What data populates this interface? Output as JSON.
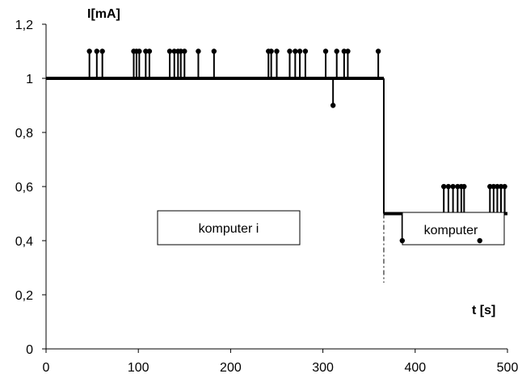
{
  "chart_data": {
    "type": "line",
    "ylabel": "I[mA]",
    "xlabel": "t [s]",
    "xlim": [
      0,
      500
    ],
    "ylim": [
      0,
      1.2
    ],
    "x_ticks": [
      0,
      100,
      200,
      300,
      400,
      500
    ],
    "y_ticks": [
      {
        "value": 0,
        "label": "0"
      },
      {
        "value": 0.2,
        "label": "0,2"
      },
      {
        "value": 0.4,
        "label": "0,4"
      },
      {
        "value": 0.6,
        "label": "0,6"
      },
      {
        "value": 0.8,
        "label": "0,8"
      },
      {
        "value": 1,
        "label": "1"
      },
      {
        "value": 1.2,
        "label": "1,2"
      }
    ],
    "grid": false,
    "legend": "none",
    "line_color": "#000000",
    "baseline_segments": [
      {
        "x_start": 0,
        "x_end": 366,
        "y": 1.0
      },
      {
        "x_start": 366,
        "x_end": 500,
        "y": 0.5
      }
    ],
    "spikes": [
      {
        "x": 47,
        "y": 1.1
      },
      {
        "x": 55,
        "y": 1.1
      },
      {
        "x": 61,
        "y": 1.1
      },
      {
        "x": 95,
        "y": 1.1
      },
      {
        "x": 98,
        "y": 1.1
      },
      {
        "x": 101,
        "y": 1.1
      },
      {
        "x": 108,
        "y": 1.1
      },
      {
        "x": 112,
        "y": 1.1
      },
      {
        "x": 134,
        "y": 1.1
      },
      {
        "x": 139,
        "y": 1.1
      },
      {
        "x": 143,
        "y": 1.1
      },
      {
        "x": 146,
        "y": 1.1
      },
      {
        "x": 150,
        "y": 1.1
      },
      {
        "x": 165,
        "y": 1.1
      },
      {
        "x": 182,
        "y": 1.1
      },
      {
        "x": 241,
        "y": 1.1
      },
      {
        "x": 244,
        "y": 1.1
      },
      {
        "x": 250,
        "y": 1.1
      },
      {
        "x": 264,
        "y": 1.1
      },
      {
        "x": 270,
        "y": 1.1
      },
      {
        "x": 275,
        "y": 1.1
      },
      {
        "x": 281,
        "y": 1.1
      },
      {
        "x": 303,
        "y": 1.1
      },
      {
        "x": 311,
        "y": 0.9
      },
      {
        "x": 315,
        "y": 1.1
      },
      {
        "x": 323,
        "y": 1.1
      },
      {
        "x": 327,
        "y": 1.1
      },
      {
        "x": 360,
        "y": 1.1
      },
      {
        "x": 386,
        "y": 0.4
      },
      {
        "x": 431,
        "y": 0.6
      },
      {
        "x": 436,
        "y": 0.6
      },
      {
        "x": 441,
        "y": 0.6
      },
      {
        "x": 446,
        "y": 0.6
      },
      {
        "x": 450,
        "y": 0.6
      },
      {
        "x": 453,
        "y": 0.6
      },
      {
        "x": 470,
        "y": 0.4
      },
      {
        "x": 481,
        "y": 0.6
      },
      {
        "x": 485,
        "y": 0.6
      },
      {
        "x": 489,
        "y": 0.6
      },
      {
        "x": 493,
        "y": 0.6
      },
      {
        "x": 497,
        "y": 0.6
      }
    ],
    "transition_x": 366,
    "annotations": [
      {
        "text": "komputer i"
      },
      {
        "text": "komputer"
      }
    ]
  }
}
